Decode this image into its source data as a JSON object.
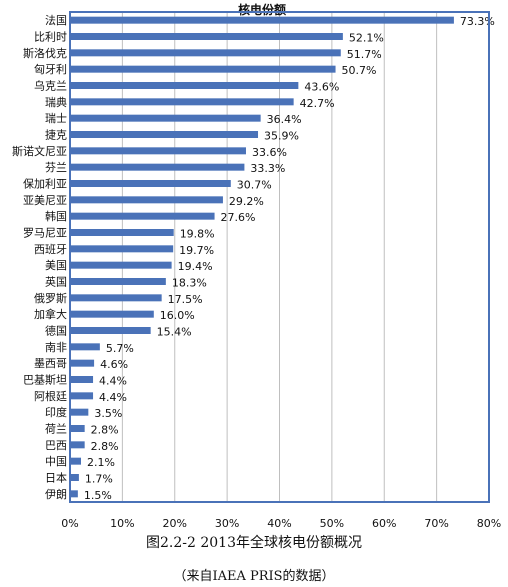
{
  "chart_data": {
    "type": "bar",
    "orientation": "horizontal",
    "title": "核电份额",
    "categories": [
      "法国",
      "比利时",
      "斯洛伐克",
      "匈牙利",
      "乌克兰",
      "瑞典",
      "瑞士",
      "捷克",
      "斯诺文尼亚",
      "芬兰",
      "保加利亚",
      "亚美尼亚",
      "韩国",
      "罗马尼亚",
      "西班牙",
      "美国",
      "英国",
      "俄罗斯",
      "加拿大",
      "德国",
      "南非",
      "墨西哥",
      "巴基斯坦",
      "阿根廷",
      "印度",
      "荷兰",
      "巴西",
      "中国",
      "日本",
      "伊朗"
    ],
    "values": [
      73.3,
      52.1,
      51.7,
      50.7,
      43.6,
      42.7,
      36.4,
      35.9,
      33.6,
      33.3,
      30.7,
      29.2,
      27.6,
      19.8,
      19.7,
      19.4,
      18.3,
      17.5,
      16.0,
      15.4,
      5.7,
      4.6,
      4.4,
      4.4,
      3.5,
      2.8,
      2.8,
      2.1,
      1.7,
      1.5
    ],
    "value_labels": [
      "73.3%",
      "52.1%",
      "51.7%",
      "50.7%",
      "43.6%",
      "42.7%",
      "36.4%",
      "35.9%",
      "33.6%",
      "33.3%",
      "30.7%",
      "29.2%",
      "27.6%",
      "19.8%",
      "19.7%",
      "19.4%",
      "18.3%",
      "17.5%",
      "16.0%",
      "15.4%",
      "5.7%",
      "4.6%",
      "4.4%",
      "4.4%",
      "3.5%",
      "2.8%",
      "2.8%",
      "2.1%",
      "1.7%",
      "1.5%"
    ],
    "x_ticks": [
      "0%",
      "10%",
      "20%",
      "30%",
      "40%",
      "50%",
      "60%",
      "70%",
      "80%"
    ],
    "xlim": [
      0,
      80
    ],
    "grid": "vertical",
    "bar_color": "#4a72b8",
    "frame_color": "#4a72b8"
  },
  "captions": {
    "figure": "图2.2-2 2013年全球核电份额概况",
    "source": "（来自IAEA PRIS的数据）"
  }
}
